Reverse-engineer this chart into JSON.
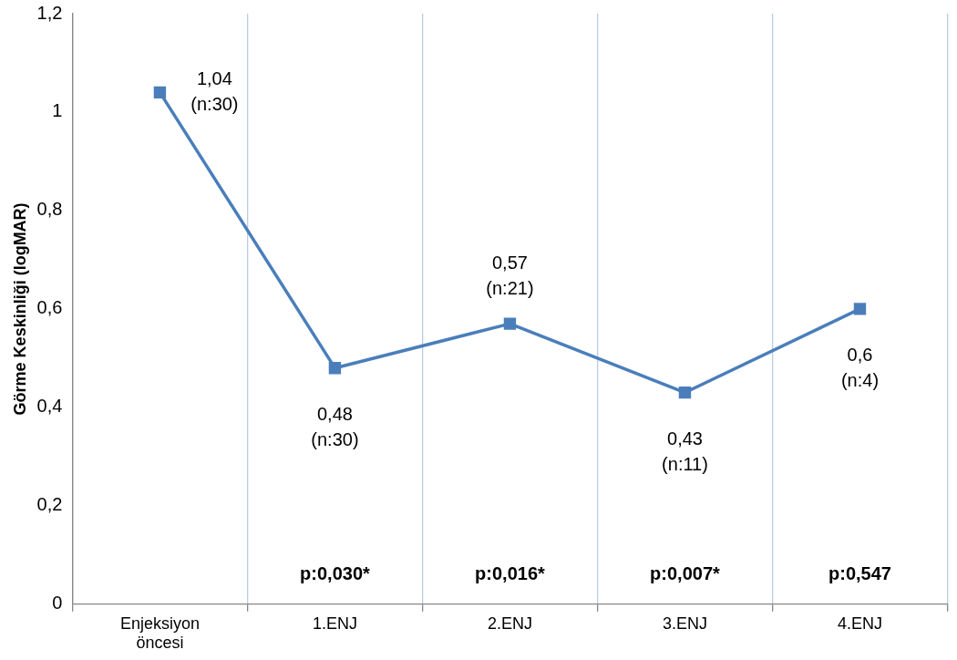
{
  "chart_data": {
    "type": "line",
    "ylabel": "Görme Keskinliği (logMAR)",
    "categories": [
      "Enjeksiyon öncesi",
      "1.ENJ",
      "2.ENJ",
      "3.ENJ",
      "4.ENJ"
    ],
    "values": [
      1.04,
      0.48,
      0.57,
      0.43,
      0.6
    ],
    "value_labels": [
      "1,04\n(n:30)",
      "0,48\n(n:30)",
      "0,57\n(n:21)",
      "0,43\n(n:11)",
      "0,6\n(n:4)"
    ],
    "color": "#4a7ebb",
    "marker": "square",
    "ylim": [
      0,
      1.2
    ],
    "yticks": [
      0,
      {
        "value": 0.2,
        "label": "0,2"
      },
      {
        "value": 0.4,
        "label": "0,4"
      },
      {
        "value": 0.6,
        "label": "0,6"
      },
      {
        "value": 0.8,
        "label": "0,8"
      },
      1,
      {
        "value": 1.2,
        "label": "1,2"
      }
    ],
    "grid": "x",
    "annotations": [
      "p:0,030*",
      "p:0,016*",
      "p:0,007*",
      "p:0,547"
    ]
  }
}
